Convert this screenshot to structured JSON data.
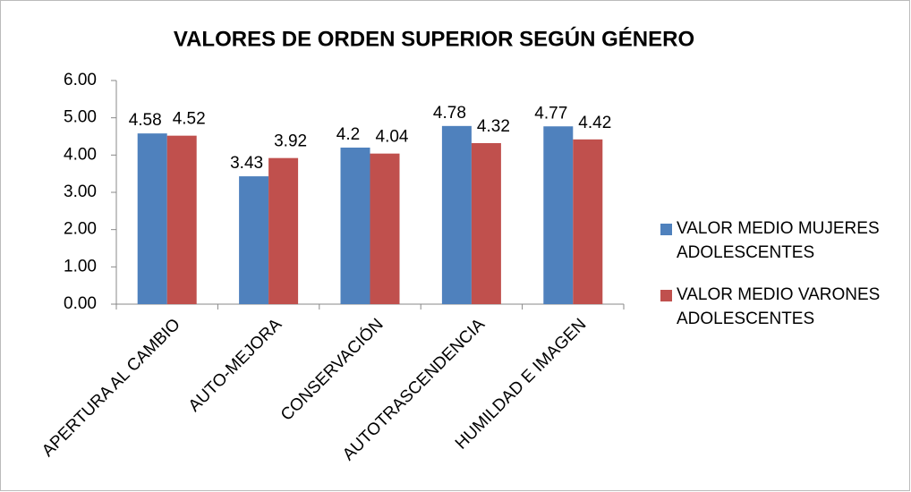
{
  "chart_data": {
    "type": "bar",
    "title": "VALORES DE ORDEN SUPERIOR SEGÚN GÉNERO",
    "categories": [
      "APERTURA AL CAMBIO",
      "AUTO-MEJORA",
      "CONSERVACIÓN",
      "AUTOTRASCENDENCIA",
      "HUMILDAD E IMAGEN"
    ],
    "series": [
      {
        "name": "VALOR MEDIO MUJERES ADOLESCENTES",
        "color": "#4f81bd",
        "values": [
          4.58,
          3.43,
          4.2,
          4.78,
          4.77
        ]
      },
      {
        "name": "VALOR MEDIO VARONES ADOLESCENTES",
        "color": "#c0504d",
        "values": [
          4.52,
          3.92,
          4.04,
          4.32,
          4.42
        ]
      }
    ],
    "ylim": [
      0,
      6
    ],
    "yticks": [
      {
        "value": 0,
        "label": "0.00"
      },
      {
        "value": 1,
        "label": "1.00"
      },
      {
        "value": 2,
        "label": "2.00"
      },
      {
        "value": 3,
        "label": "3.00"
      },
      {
        "value": 4,
        "label": "4.00"
      },
      {
        "value": 5,
        "label": "5.00"
      },
      {
        "value": 6,
        "label": "6.00"
      }
    ],
    "legend": "right"
  }
}
